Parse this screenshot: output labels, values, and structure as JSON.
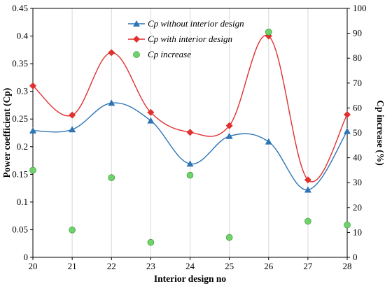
{
  "chart_data": {
    "type": "line",
    "x": [
      20,
      21,
      22,
      23,
      24,
      25,
      26,
      27,
      28
    ],
    "xlabel": "Interior design no",
    "ylabel": "Power coefficient (Cp)",
    "y2label": "Cp increase (%)",
    "ylim": [
      0,
      0.45
    ],
    "y2lim": [
      0,
      100
    ],
    "yticks": [
      "0",
      "0.05",
      "0.1",
      "0.15",
      "0.2",
      "0.25",
      "0.3",
      "0.35",
      "0.4",
      "0.45"
    ],
    "y2ticks": [
      "0",
      "10",
      "20",
      "30",
      "40",
      "50",
      "60",
      "70",
      "80",
      "90",
      "100"
    ],
    "grid": "vertical",
    "legend": "top-center",
    "series": [
      {
        "name": "Cp without interior design",
        "axis": "left",
        "marker": "triangle",
        "color": "#2e75b6",
        "smooth": true,
        "values": [
          0.229,
          0.231,
          0.279,
          0.247,
          0.169,
          0.219,
          0.209,
          0.122,
          0.228
        ]
      },
      {
        "name": "Cp with interior design",
        "axis": "left",
        "marker": "diamond",
        "color": "#e0312f",
        "smooth": true,
        "values": [
          0.31,
          0.257,
          0.37,
          0.262,
          0.226,
          0.238,
          0.4,
          0.14,
          0.258
        ]
      },
      {
        "name": "Cp increase",
        "axis": "right",
        "marker": "circle",
        "color": "#6fd36b",
        "smooth": false,
        "values": [
          35,
          11,
          32,
          6,
          33,
          8,
          90.5,
          14.5,
          13
        ]
      }
    ]
  }
}
